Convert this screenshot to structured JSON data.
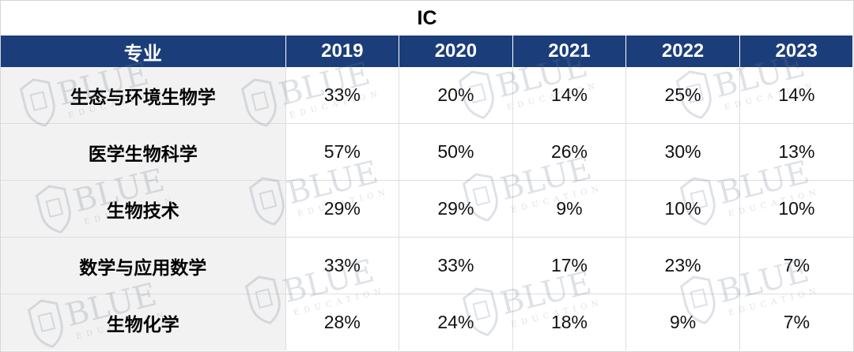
{
  "title": "IC",
  "table": {
    "headers": [
      "专业",
      "2019",
      "2020",
      "2021",
      "2022",
      "2023"
    ],
    "rows": [
      {
        "major": "生态与环境生物学",
        "values": [
          "33%",
          "20%",
          "14%",
          "25%",
          "14%"
        ]
      },
      {
        "major": "医学生物科学",
        "values": [
          "57%",
          "50%",
          "26%",
          "30%",
          "13%"
        ]
      },
      {
        "major": "生物技术",
        "values": [
          "29%",
          "29%",
          "9%",
          "10%",
          "10%"
        ]
      },
      {
        "major": "数学与应用数学",
        "values": [
          "33%",
          "33%",
          "17%",
          "23%",
          "7%"
        ]
      },
      {
        "major": "生物化学",
        "values": [
          "28%",
          "24%",
          "18%",
          "9%",
          "7%"
        ]
      }
    ]
  },
  "watermark": {
    "main_text": "BLUE",
    "sub_text": "EDUCATION",
    "icon": "shield-book-icon"
  },
  "colors": {
    "header_bg": "#1b3d7a",
    "header_text": "#ffffff",
    "major_col_bg": "#f2f2f2"
  }
}
